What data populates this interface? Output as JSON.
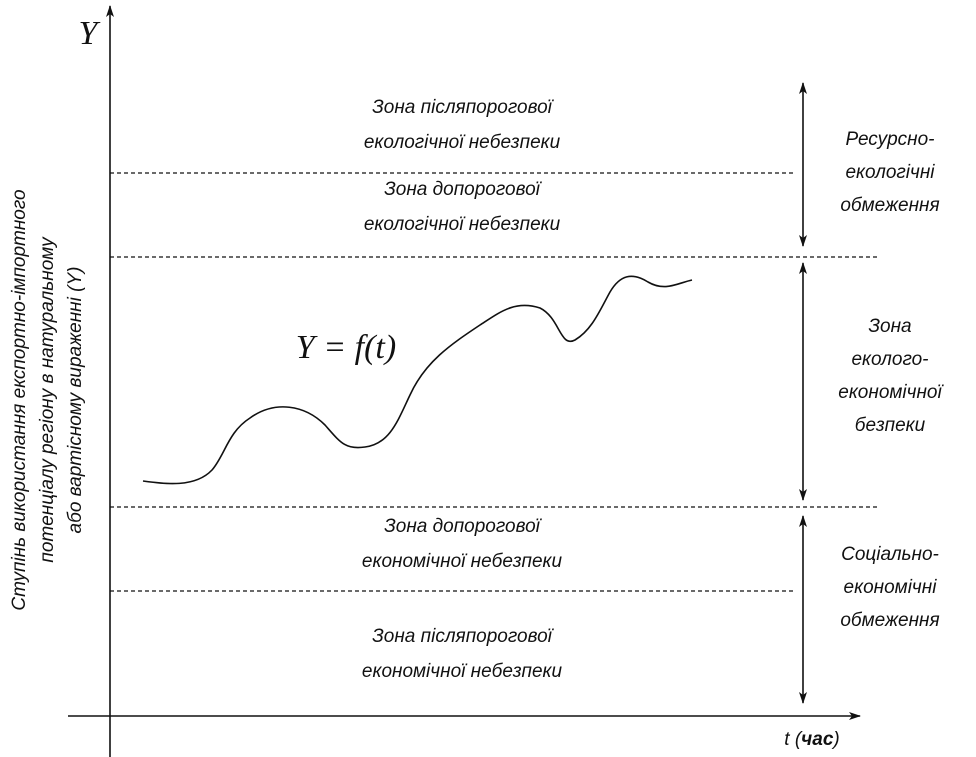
{
  "axes": {
    "y_label": "Y",
    "y_title": [
      "Ступінь використання експортно-імпортного",
      "потенціалу регіону в натуральному",
      "або вартісному вираженні (Y)"
    ],
    "x_label": [
      "t (",
      "час",
      ")"
    ]
  },
  "zones": [
    [
      "Зона післяпорогової",
      "екологічної небезпеки"
    ],
    [
      "Зона допорогової",
      "екологічної небезпеки"
    ],
    [
      "Зона допорогової",
      "економічної небезпеки"
    ],
    [
      "Зона післяпорогової",
      "економічної небезпеки"
    ]
  ],
  "side_labels": [
    [
      "Ресурсно-",
      "екологічні",
      "обмеження"
    ],
    [
      "Зона",
      "еколого-",
      "економічної",
      "безпеки"
    ],
    [
      "Соціально-",
      "економічні",
      "обмеження"
    ]
  ],
  "formula": "Y = f(t)"
}
